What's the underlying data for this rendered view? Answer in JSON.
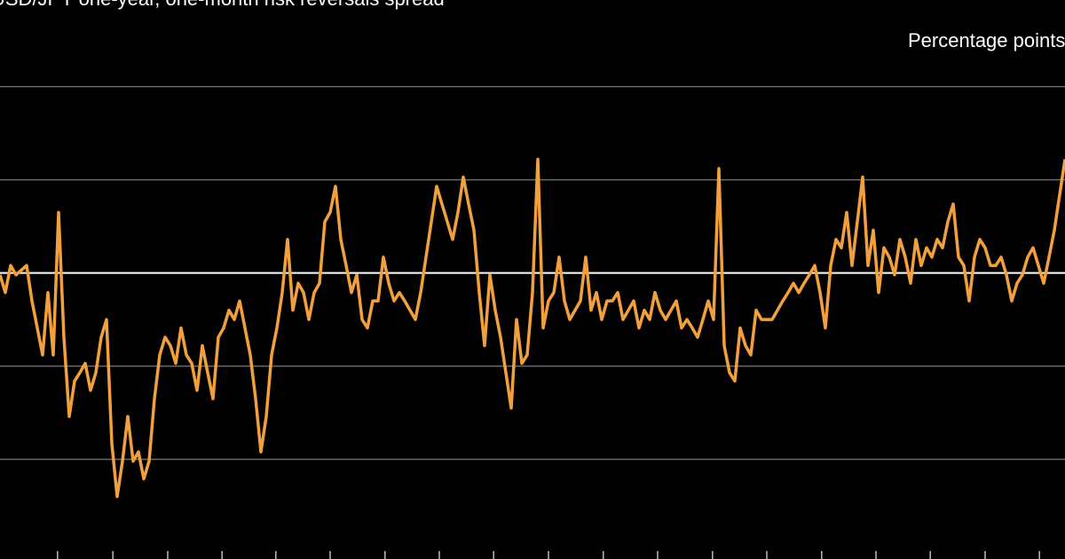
{
  "chart_data": {
    "type": "line",
    "title": "USD/JPY one-year, one-month risk reversals spread",
    "subtitle": "Percentage points",
    "x": [
      0,
      1,
      2,
      3,
      4,
      5,
      6,
      7,
      8,
      9,
      10,
      11,
      12,
      13,
      14,
      15,
      16,
      17,
      18,
      19,
      20,
      21,
      22,
      23,
      24,
      25,
      26,
      27,
      28,
      29,
      30,
      31,
      32,
      33,
      34,
      35,
      36,
      37,
      38,
      39,
      40,
      41,
      42,
      43,
      44,
      45,
      46,
      47,
      48,
      49,
      50,
      51,
      52,
      53,
      54,
      55,
      56,
      57,
      58,
      59,
      60,
      61,
      62,
      63,
      64,
      65,
      66,
      67,
      68,
      69,
      70,
      71,
      72,
      73,
      74,
      75,
      76,
      77,
      78,
      79,
      80,
      81,
      82,
      83,
      84,
      85,
      86,
      87,
      88,
      89,
      90,
      91,
      92,
      93,
      94,
      95,
      96,
      97,
      98,
      99,
      100,
      101,
      102,
      103,
      104,
      105,
      106,
      107,
      108,
      109,
      110,
      111,
      112,
      113,
      114,
      115,
      116,
      117,
      118,
      119,
      120,
      121,
      122,
      123,
      124,
      125,
      126,
      127,
      128,
      129,
      130,
      131,
      132,
      133,
      134,
      135,
      136,
      137,
      138,
      139,
      140,
      141,
      142,
      143,
      144,
      145,
      146,
      147,
      148,
      149,
      150,
      151,
      152,
      153,
      154,
      155,
      156,
      157,
      158,
      159,
      160,
      161,
      162,
      163,
      164,
      165,
      166,
      167,
      168,
      169,
      170,
      171,
      172,
      173,
      174,
      175,
      176,
      177,
      178,
      179,
      180,
      181,
      182,
      183,
      184,
      185,
      186,
      187,
      188,
      189,
      190,
      191,
      192,
      193,
      194,
      195,
      196,
      197,
      198,
      199,
      200
    ],
    "series": [
      {
        "color": "#f2a03d",
        "values": [
          -0.02,
          -0.21,
          0.08,
          -0.02,
          0.03,
          0.08,
          -0.3,
          -0.59,
          -0.88,
          -0.21,
          -0.88,
          0.65,
          -0.69,
          -1.54,
          -1.16,
          -1.07,
          -0.97,
          -1.26,
          -1.07,
          -0.69,
          -0.5,
          -1.83,
          -2.4,
          -2.02,
          -1.54,
          -2.02,
          -1.92,
          -2.21,
          -2.02,
          -1.35,
          -0.88,
          -0.69,
          -0.78,
          -0.97,
          -0.59,
          -0.88,
          -0.97,
          -1.26,
          -0.78,
          -1.07,
          -1.35,
          -0.69,
          -0.59,
          -0.4,
          -0.5,
          -0.3,
          -0.59,
          -0.88,
          -1.35,
          -1.92,
          -1.54,
          -0.88,
          -0.59,
          -0.21,
          0.36,
          -0.4,
          -0.11,
          -0.21,
          -0.5,
          -0.21,
          -0.11,
          0.55,
          0.65,
          0.93,
          0.36,
          0.08,
          -0.21,
          -0.02,
          -0.5,
          -0.59,
          -0.3,
          -0.3,
          0.17,
          -0.11,
          -0.3,
          -0.21,
          -0.3,
          -0.4,
          -0.5,
          -0.21,
          0.17,
          0.55,
          0.93,
          0.74,
          0.55,
          0.36,
          0.65,
          1.03,
          0.74,
          0.46,
          -0.21,
          -0.78,
          -0.02,
          -0.4,
          -0.69,
          -1.07,
          -1.45,
          -0.5,
          -0.97,
          -0.88,
          -0.21,
          1.22,
          -0.59,
          -0.3,
          -0.21,
          0.17,
          -0.3,
          -0.5,
          -0.4,
          -0.3,
          0.17,
          -0.4,
          -0.21,
          -0.5,
          -0.3,
          -0.3,
          -0.21,
          -0.5,
          -0.4,
          -0.3,
          -0.59,
          -0.4,
          -0.5,
          -0.21,
          -0.4,
          -0.5,
          -0.4,
          -0.3,
          -0.59,
          -0.5,
          -0.59,
          -0.69,
          -0.5,
          -0.3,
          -0.5,
          1.12,
          -0.78,
          -1.07,
          -1.16,
          -0.59,
          -0.78,
          -0.88,
          -0.4,
          -0.5,
          -0.5,
          -0.5,
          -0.4,
          -0.3,
          -0.21,
          -0.11,
          -0.21,
          -0.11,
          -0.02,
          0.08,
          -0.21,
          -0.59,
          0.08,
          0.36,
          0.27,
          0.65,
          0.08,
          0.55,
          1.03,
          0.08,
          0.46,
          -0.21,
          0.27,
          0.17,
          -0.02,
          0.36,
          0.17,
          -0.11,
          0.36,
          0.08,
          0.27,
          0.17,
          0.36,
          0.27,
          0.55,
          0.74,
          0.17,
          0.08,
          -0.3,
          0.17,
          0.36,
          0.27,
          0.08,
          0.08,
          0.17,
          -0.02,
          -0.3,
          -0.11,
          -0.02,
          0.17,
          0.27,
          0.08,
          -0.11,
          0.17,
          0.46,
          0.84,
          1.22
        ]
      }
    ],
    "xlim": [
      0,
      200
    ],
    "xticks": [
      10.8,
      21.2,
      31.5,
      41.7,
      51.8,
      62,
      72.3,
      82.5,
      92.7,
      103,
      113.3,
      123.5,
      133.8,
      144,
      154.3,
      164.5,
      174.7,
      185,
      195.2
    ],
    "ylim": [
      -3.07,
      2.93
    ],
    "yticks": [
      -2,
      -1,
      0,
      1,
      2
    ],
    "grid": true
  }
}
